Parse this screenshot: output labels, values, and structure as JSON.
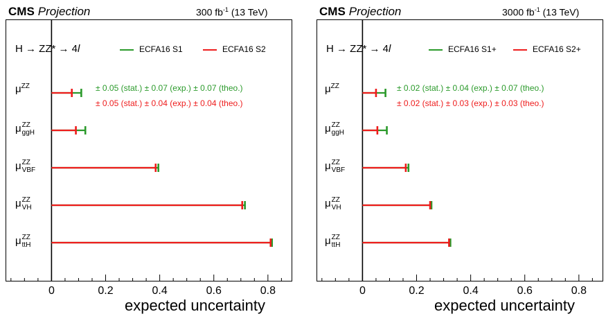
{
  "colors": {
    "s1": "#2b9a2b",
    "s2": "#ee1c1c",
    "axis": "#000000"
  },
  "chart_data": [
    {
      "type": "bar",
      "orientation": "horizontal",
      "brand": "CMS",
      "subtitle": "Projection",
      "luminosity": "300 fb",
      "lumi_exp": "-1",
      "energy": "(13 TeV)",
      "process": "H → ZZ* → 4",
      "process_l": "l",
      "categories": [
        "μZZ",
        "μZZggH",
        "μZZVBF",
        "μZZVH",
        "μZZttH"
      ],
      "cat_labels": [
        {
          "base": "μ",
          "sup": "ZZ",
          "sub": ""
        },
        {
          "base": "μ",
          "sup": "ZZ",
          "sub": "ggH"
        },
        {
          "base": "μ",
          "sup": "ZZ",
          "sub": "VBF"
        },
        {
          "base": "μ",
          "sup": "ZZ",
          "sub": "VH"
        },
        {
          "base": "μ",
          "sup": "ZZ",
          "sub": "ttH"
        }
      ],
      "series": [
        {
          "name": "ECFA16 S1",
          "color": "#2b9a2b",
          "values": [
            0.11,
            0.125,
            0.395,
            0.715,
            0.815
          ]
        },
        {
          "name": "ECFA16 S2",
          "color": "#ee1c1c",
          "values": [
            0.075,
            0.09,
            0.385,
            0.705,
            0.81
          ]
        }
      ],
      "annotations": [
        {
          "text": "± 0.05 (stat.) ± 0.07 (exp.) ± 0.07 (theo.)",
          "color": "#2b9a2b"
        },
        {
          "text": "± 0.05 (stat.) ± 0.04 (exp.) ± 0.04 (theo.)",
          "color": "#ee1c1c"
        }
      ],
      "xlabel": "expected uncertainty",
      "xlim": [
        -0.17,
        0.89
      ],
      "xticks": [
        0,
        0.2,
        0.4,
        0.6,
        0.8
      ],
      "xtick_labels": [
        "0",
        "0.2",
        "0.4",
        "0.6",
        "0.8"
      ]
    },
    {
      "type": "bar",
      "orientation": "horizontal",
      "brand": "CMS",
      "subtitle": "Projection",
      "luminosity": "3000 fb",
      "lumi_exp": "-1",
      "energy": "(13 TeV)",
      "process": "H → ZZ* → 4",
      "process_l": "l",
      "categories": [
        "μZZ",
        "μZZggH",
        "μZZVBF",
        "μZZVH",
        "μZZttH"
      ],
      "cat_labels": [
        {
          "base": "μ",
          "sup": "ZZ",
          "sub": ""
        },
        {
          "base": "μ",
          "sup": "ZZ",
          "sub": "ggH"
        },
        {
          "base": "μ",
          "sup": "ZZ",
          "sub": "VBF"
        },
        {
          "base": "μ",
          "sup": "ZZ",
          "sub": "VH"
        },
        {
          "base": "μ",
          "sup": "ZZ",
          "sub": "ttH"
        }
      ],
      "series": [
        {
          "name": "ECFA16 S1+",
          "color": "#2b9a2b",
          "values": [
            0.085,
            0.09,
            0.17,
            0.255,
            0.325
          ]
        },
        {
          "name": "ECFA16 S2+",
          "color": "#ee1c1c",
          "values": [
            0.05,
            0.055,
            0.16,
            0.25,
            0.32
          ]
        }
      ],
      "annotations": [
        {
          "text": "± 0.02 (stat.) ± 0.04 (exp.) ± 0.07 (theo.)",
          "color": "#2b9a2b"
        },
        {
          "text": "± 0.02 (stat.) ± 0.03 (exp.) ± 0.03 (theo.)",
          "color": "#ee1c1c"
        }
      ],
      "xlabel": "expected uncertainty",
      "xlim": [
        -0.17,
        0.89
      ],
      "xticks": [
        0,
        0.2,
        0.4,
        0.6,
        0.8
      ],
      "xtick_labels": [
        "0",
        "0.2",
        "0.4",
        "0.6",
        "0.8"
      ]
    }
  ]
}
